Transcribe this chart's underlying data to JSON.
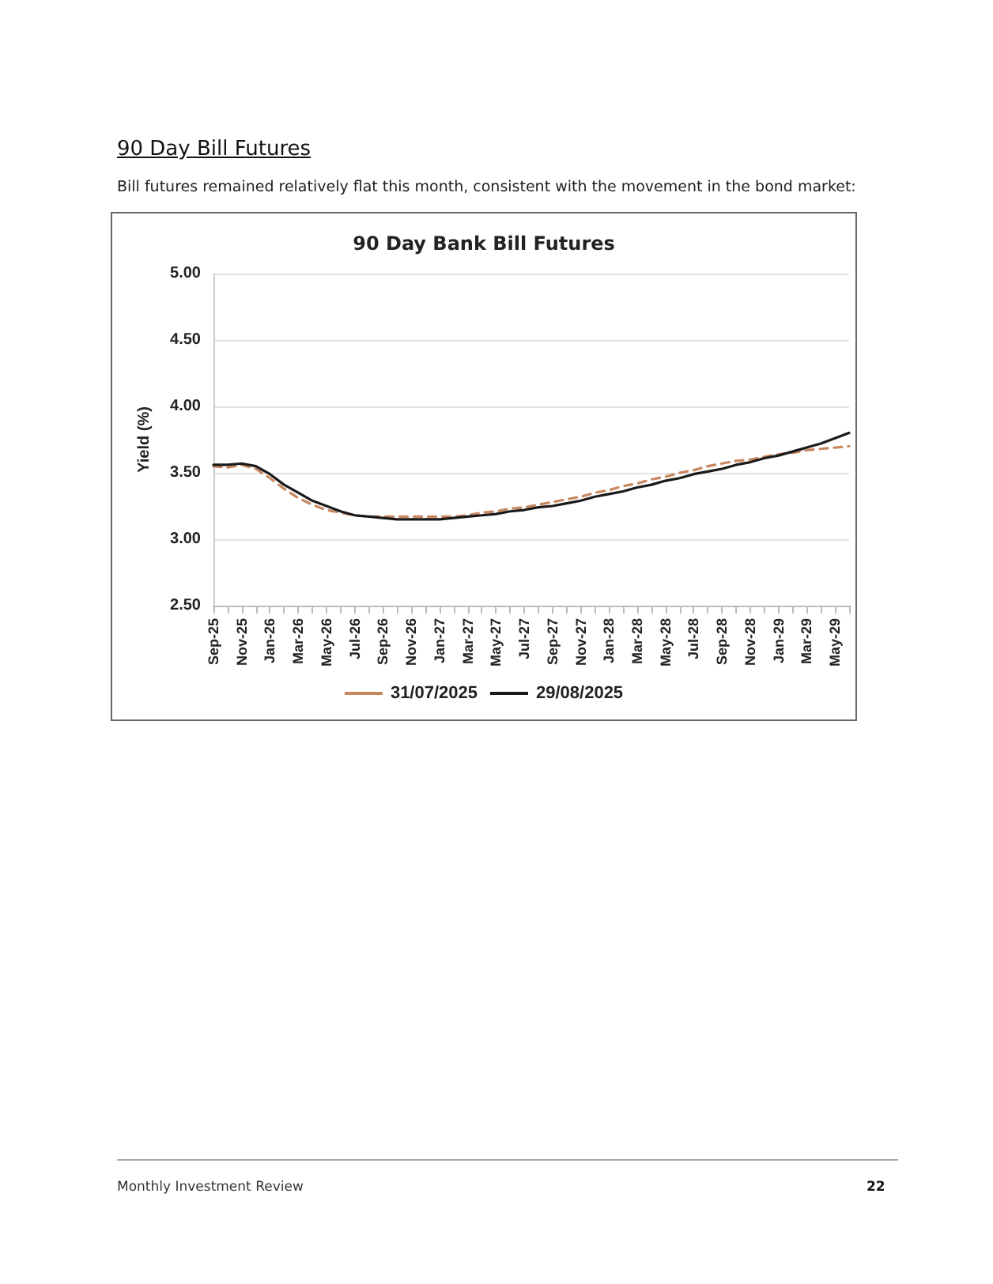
{
  "chart_data": {
    "type": "line",
    "title": "90 Day Bank Bill Futures",
    "ylabel": "Yield (%)",
    "annotations": [
      "90 Day Bill Futures",
      "Bill futures remained relatively flat this month, consistent with the movement in the bond market:",
      "Monthly Investment Review",
      "22"
    ],
    "categories": [
      "Sep-25",
      null,
      "Nov-25",
      null,
      "Jan-26",
      null,
      "Mar-26",
      null,
      "May-26",
      null,
      "Jul-26",
      null,
      "Sep-26",
      null,
      "Nov-26",
      null,
      "Jan-27",
      null,
      "Mar-27",
      null,
      "May-27",
      null,
      "Jul-27",
      null,
      "Sep-27",
      null,
      "Nov-27",
      null,
      "Jan-28",
      null,
      "Mar-28",
      null,
      "May-28",
      null,
      "Jul-28",
      null,
      "Sep-28",
      null,
      "Nov-28",
      null,
      "Jan-29",
      null,
      "Mar-29",
      null,
      "May-29",
      null
    ],
    "series": [
      {
        "name": "31/07/2025",
        "color": "#c8875f",
        "line_style": "dashed",
        "values": [
          3.55,
          3.54,
          3.56,
          3.53,
          3.46,
          3.38,
          3.31,
          3.26,
          3.22,
          3.2,
          3.18,
          3.17,
          3.17,
          3.17,
          3.17,
          3.17,
          3.17,
          3.17,
          3.18,
          3.2,
          3.21,
          3.23,
          3.24,
          3.26,
          3.28,
          3.3,
          3.32,
          3.35,
          3.37,
          3.4,
          3.42,
          3.45,
          3.47,
          3.5,
          3.52,
          3.55,
          3.57,
          3.59,
          3.6,
          3.62,
          3.64,
          3.65,
          3.67,
          3.68,
          3.69,
          3.7
        ]
      },
      {
        "name": "29/08/2025",
        "color": "#1a1a1a",
        "line_style": "solid",
        "values": [
          3.56,
          3.56,
          3.57,
          3.55,
          3.49,
          3.41,
          3.35,
          3.29,
          3.25,
          3.21,
          3.18,
          3.17,
          3.16,
          3.15,
          3.15,
          3.15,
          3.15,
          3.16,
          3.17,
          3.18,
          3.19,
          3.21,
          3.22,
          3.24,
          3.25,
          3.27,
          3.29,
          3.32,
          3.34,
          3.36,
          3.39,
          3.41,
          3.44,
          3.46,
          3.49,
          3.51,
          3.53,
          3.56,
          3.58,
          3.61,
          3.63,
          3.66,
          3.69,
          3.72,
          3.76,
          3.8
        ]
      }
    ],
    "ylim": [
      2.5,
      5
    ],
    "yticks": [
      {
        "value": 2.5,
        "label": "2.50"
      },
      {
        "value": 3,
        "label": "3.00"
      },
      {
        "value": 3.5,
        "label": "3.50"
      },
      {
        "value": 4,
        "label": "4.00"
      },
      {
        "value": 4.5,
        "label": "4.50"
      },
      {
        "value": 5,
        "label": "5.00"
      }
    ],
    "grid": "y",
    "legend": "bottom",
    "marker": "none"
  }
}
